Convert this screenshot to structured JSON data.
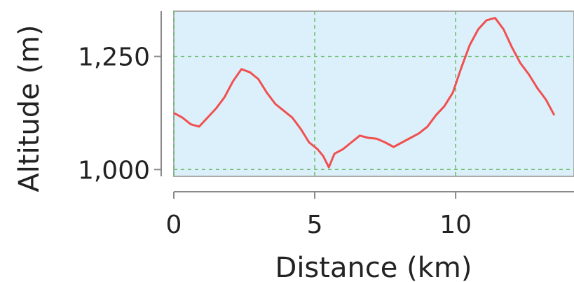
{
  "chart_data": {
    "type": "line",
    "title": "",
    "xlabel": "Distance (km)",
    "ylabel": "Altitude (m)",
    "xlim": [
      0,
      14.2
    ],
    "ylim": [
      985,
      1350
    ],
    "xticks": [
      0,
      5,
      10
    ],
    "xtick_labels": [
      "0",
      "5",
      "10"
    ],
    "yticks": [
      1000,
      1250
    ],
    "ytick_labels": [
      "1,000",
      "1,250"
    ],
    "grid": true,
    "colors": {
      "plot_background": "#dcf0fb",
      "line": "#f05050",
      "grid": "#66bb66",
      "axis": "#888888"
    },
    "series": [
      {
        "name": "",
        "x": [
          0,
          0.3,
          0.6,
          0.9,
          1.2,
          1.5,
          1.8,
          2.1,
          2.4,
          2.7,
          3.0,
          3.3,
          3.6,
          3.9,
          4.2,
          4.5,
          4.8,
          5.1,
          5.3,
          5.5,
          5.7,
          6.0,
          6.3,
          6.6,
          6.9,
          7.2,
          7.5,
          7.8,
          8.1,
          8.4,
          8.7,
          9.0,
          9.3,
          9.6,
          9.9,
          10.2,
          10.5,
          10.8,
          11.1,
          11.4,
          11.7,
          12.0,
          12.3,
          12.6,
          12.9,
          13.2,
          13.5
        ],
        "y": [
          1125,
          1115,
          1100,
          1095,
          1115,
          1135,
          1160,
          1195,
          1222,
          1215,
          1200,
          1170,
          1145,
          1130,
          1115,
          1090,
          1060,
          1045,
          1030,
          1005,
          1035,
          1045,
          1060,
          1075,
          1070,
          1068,
          1060,
          1050,
          1060,
          1070,
          1080,
          1095,
          1120,
          1140,
          1170,
          1225,
          1275,
          1310,
          1330,
          1335,
          1310,
          1270,
          1235,
          1210,
          1180,
          1155,
          1120
        ]
      }
    ]
  }
}
